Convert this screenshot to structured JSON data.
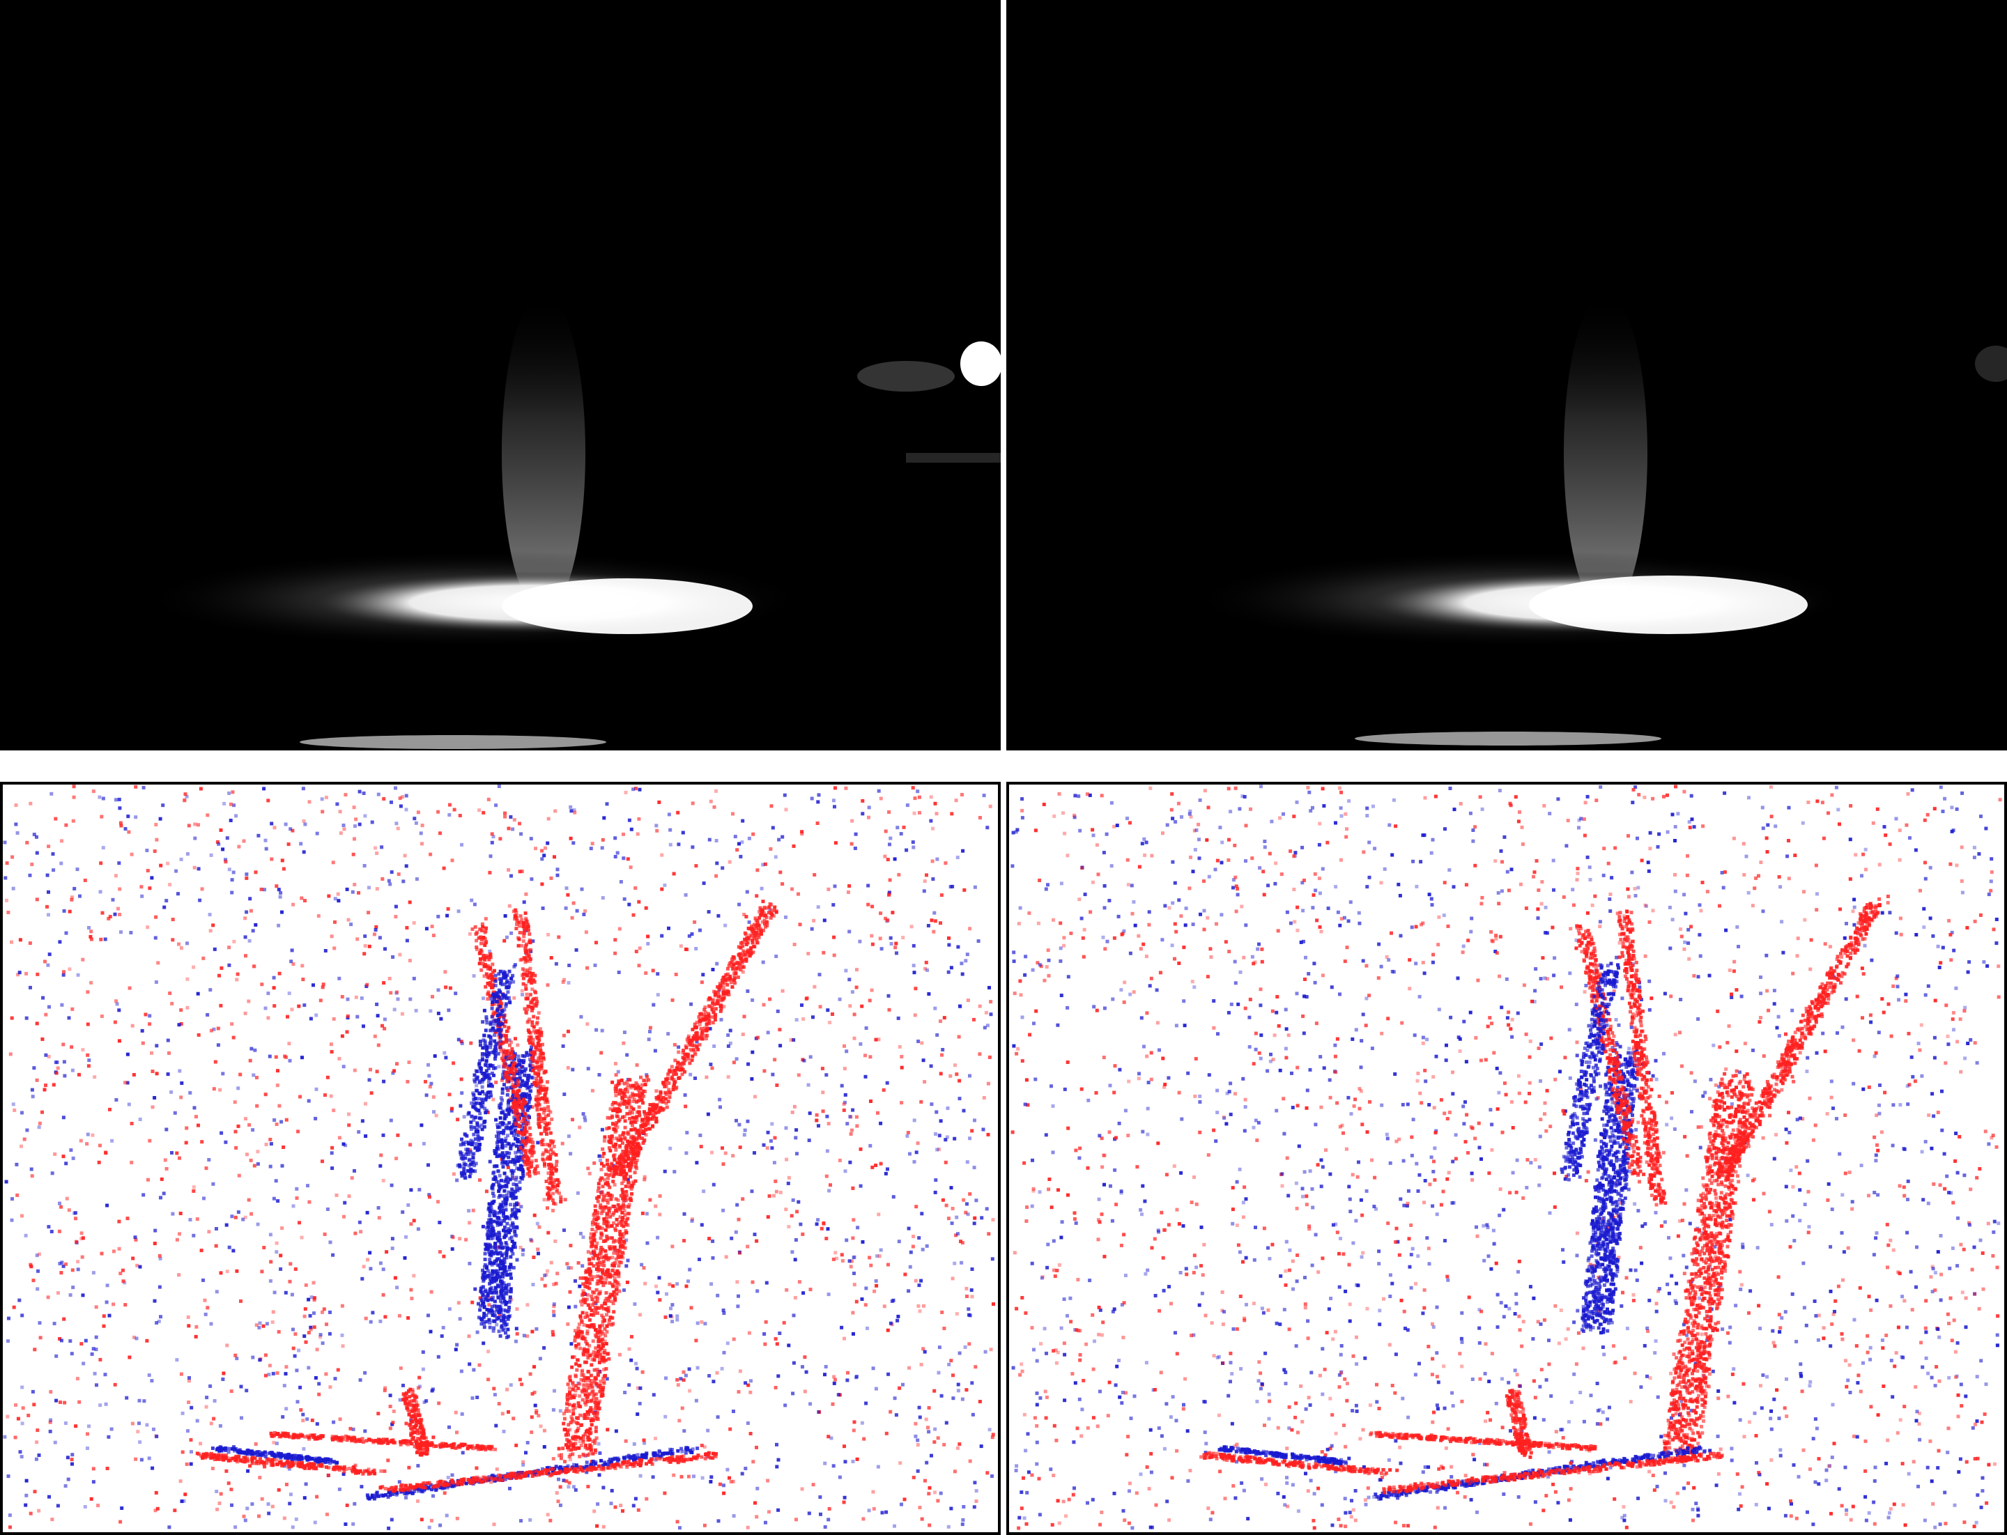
{
  "figure": {
    "panels": [
      {
        "id": "frame-left",
        "kind": "grayscale-frame",
        "description_color": "#000000"
      },
      {
        "id": "frame-right",
        "kind": "grayscale-frame",
        "description_color": "#000000"
      },
      {
        "id": "events-left",
        "kind": "event-polarity-map"
      },
      {
        "id": "events-right",
        "kind": "event-polarity-map"
      }
    ],
    "colors": {
      "positive_event": "#ff2020",
      "negative_event": "#1a1ad0",
      "event_background": "#ffffff",
      "frame_background": "#000000",
      "frame_highlight": "#ffffff"
    }
  }
}
